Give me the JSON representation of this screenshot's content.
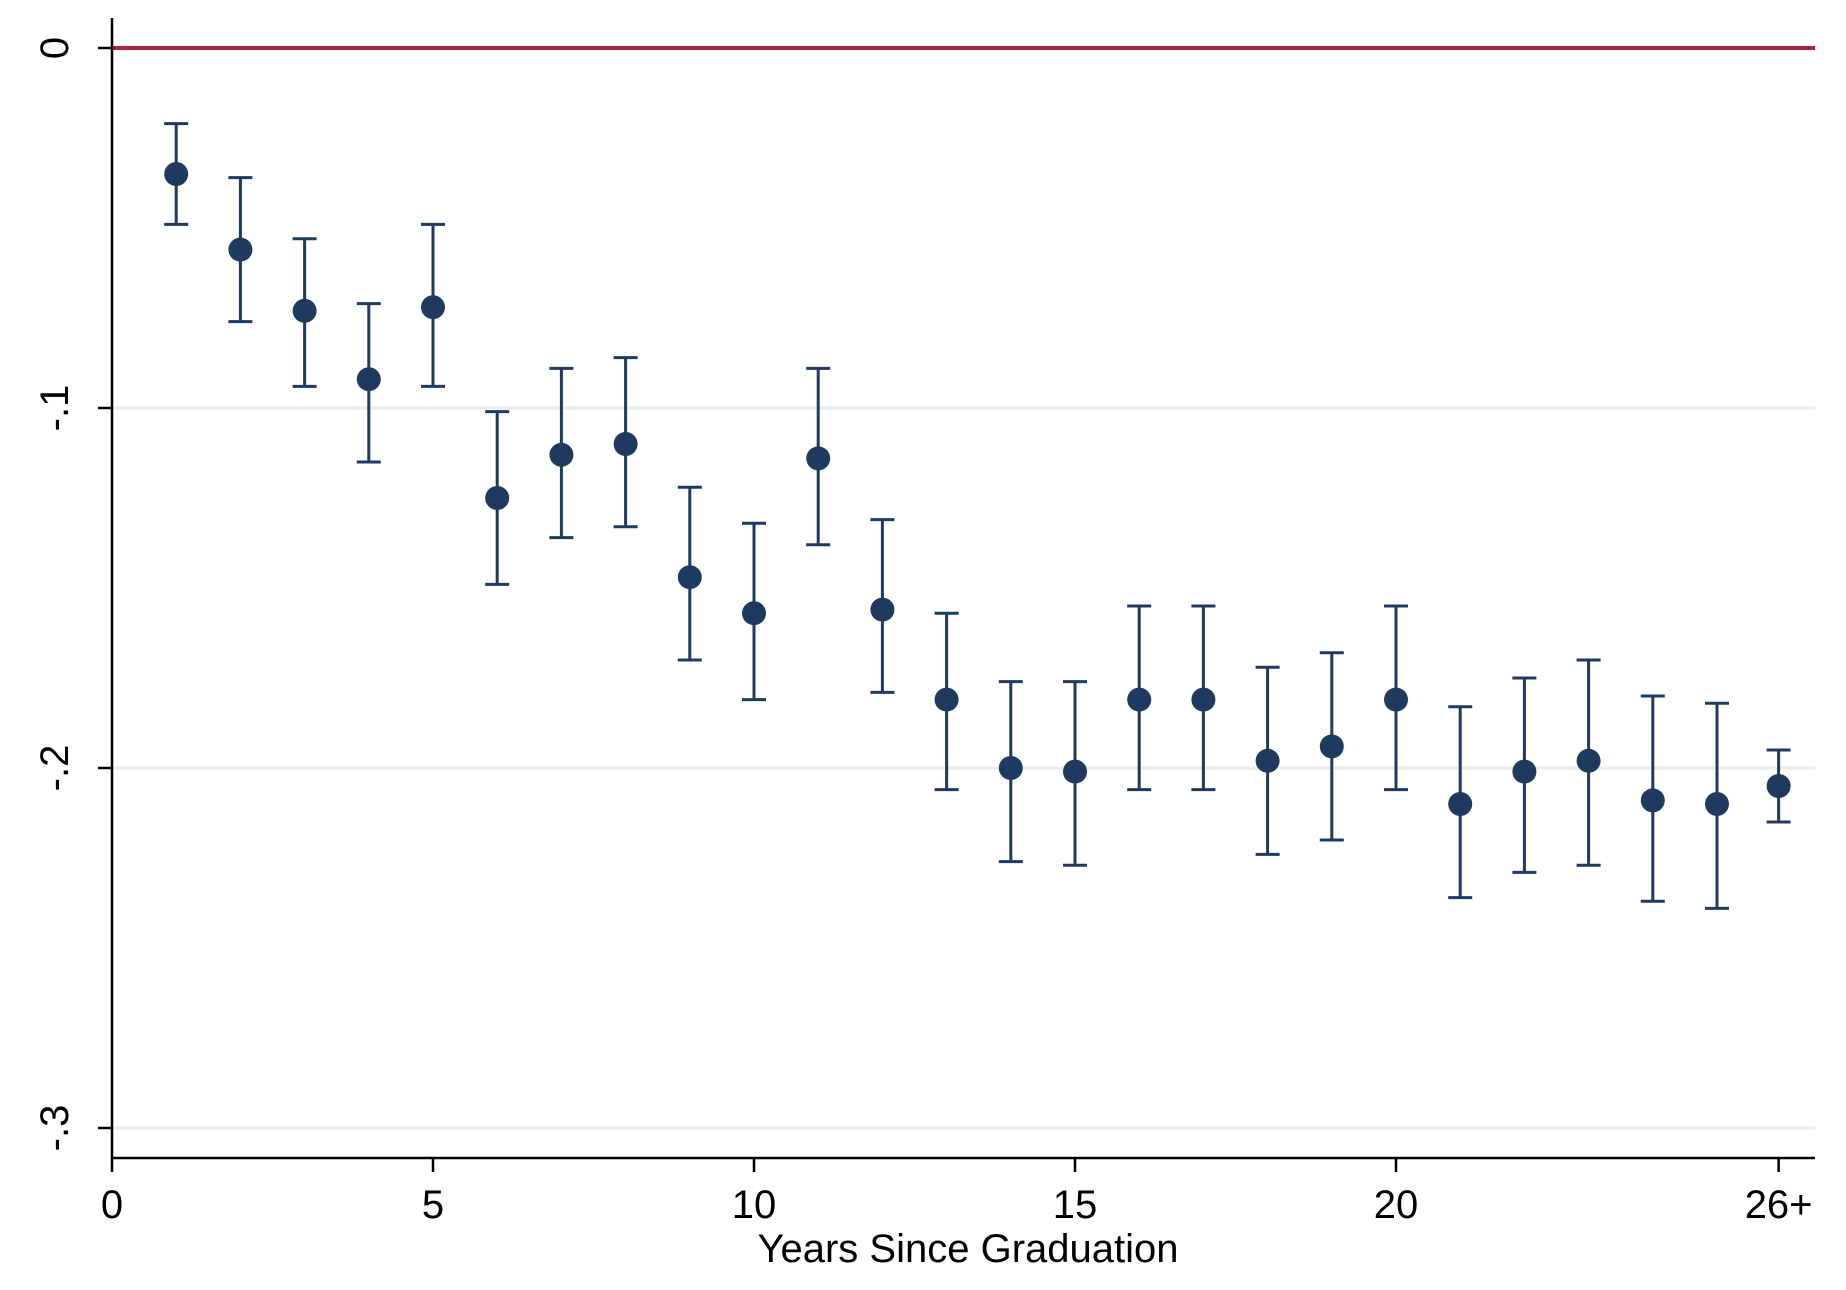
{
  "chart_data": {
    "type": "scatter",
    "title": "",
    "xlabel": "Years Since Graduation",
    "ylabel": "",
    "xlim": [
      0,
      26.5
    ],
    "ylim": [
      -0.31,
      0.008
    ],
    "x_ticks": [
      {
        "value": 0,
        "label": "0"
      },
      {
        "value": 5,
        "label": "5"
      },
      {
        "value": 10,
        "label": "10"
      },
      {
        "value": 15,
        "label": "15"
      },
      {
        "value": 20,
        "label": "20"
      },
      {
        "value": 25.96,
        "label": "26+"
      }
    ],
    "y_ticks": [
      {
        "value": 0,
        "label": "0"
      },
      {
        "value": -0.1,
        "label": "-.1"
      },
      {
        "value": -0.2,
        "label": "-.2"
      },
      {
        "value": -0.3,
        "label": "-.3"
      }
    ],
    "grid": {
      "horizontal": true,
      "vertical": false
    },
    "reference_line": {
      "y": 0,
      "color": "#B0213F"
    },
    "colors": {
      "points": "#1F3A5F",
      "error_bars": "#1F3A5F",
      "reference_line": "#B0213F",
      "grid": "#E6EEEE"
    },
    "series": [
      {
        "x": [
          1,
          2,
          3,
          4,
          5,
          6,
          7,
          8,
          9,
          10,
          11,
          12,
          13,
          14,
          15,
          16,
          17,
          18,
          19,
          20,
          21,
          22,
          23,
          24,
          25,
          25.96
        ],
        "y": [
          -0.035,
          -0.056,
          -0.073,
          -0.092,
          -0.072,
          -0.125,
          -0.113,
          -0.11,
          -0.147,
          -0.157,
          -0.114,
          -0.156,
          -0.181,
          -0.2,
          -0.201,
          -0.181,
          -0.181,
          -0.198,
          -0.194,
          -0.181,
          -0.21,
          -0.201,
          -0.198,
          -0.209,
          -0.21,
          -0.205
        ],
        "lower": [
          -0.049,
          -0.076,
          -0.094,
          -0.115,
          -0.094,
          -0.149,
          -0.136,
          -0.133,
          -0.17,
          -0.181,
          -0.138,
          -0.179,
          -0.206,
          -0.226,
          -0.227,
          -0.206,
          -0.206,
          -0.224,
          -0.22,
          -0.206,
          -0.236,
          -0.229,
          -0.227,
          -0.237,
          -0.239,
          -0.215
        ],
        "upper": [
          -0.021,
          -0.036,
          -0.053,
          -0.071,
          -0.049,
          -0.101,
          -0.089,
          -0.086,
          -0.122,
          -0.132,
          -0.089,
          -0.131,
          -0.157,
          -0.176,
          -0.176,
          -0.155,
          -0.155,
          -0.172,
          -0.168,
          -0.155,
          -0.183,
          -0.175,
          -0.17,
          -0.18,
          -0.182,
          -0.195
        ]
      }
    ]
  }
}
